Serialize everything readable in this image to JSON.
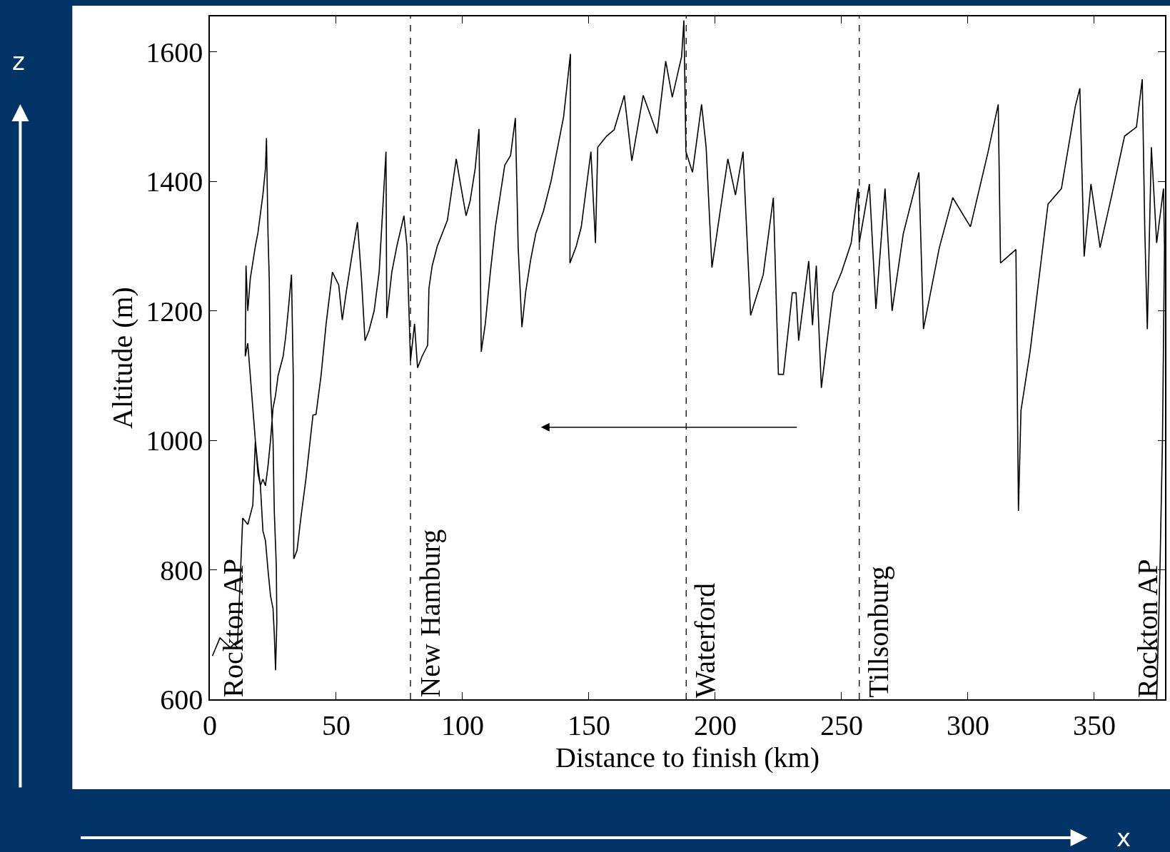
{
  "chart_data": {
    "type": "line",
    "xlabel": "Distance to finish (km)",
    "ylabel": "Altitude (m)",
    "xlim": [
      0,
      378
    ],
    "ylim": [
      600,
      1655
    ],
    "xticks": [
      0,
      50,
      100,
      150,
      200,
      250,
      300,
      350
    ],
    "yticks": [
      600,
      800,
      1000,
      1200,
      1400,
      1600
    ],
    "grid": false,
    "marker": "none",
    "line_style": "solid",
    "series": [
      {
        "color": "#000000",
        "x": [
          1,
          4,
          8,
          11,
          13,
          15,
          17,
          18,
          19,
          20,
          21,
          22,
          23,
          24,
          25,
          25.5,
          26,
          26.5,
          26.3,
          25.5,
          25,
          24,
          23.5,
          23,
          22.4,
          22,
          21,
          20,
          19,
          18,
          16,
          15,
          14.3,
          14,
          15,
          16,
          17,
          18,
          19,
          20,
          21,
          22,
          23,
          24,
          25,
          26,
          27,
          29,
          30,
          31,
          32.3,
          33,
          33.2,
          34.5,
          36,
          38,
          40.8,
          42,
          44,
          46,
          48.5,
          51,
          52.4,
          54,
          56,
          58.4,
          60,
          61.4,
          63,
          65,
          67,
          69.7,
          70,
          72,
          74,
          76.8,
          78,
          79.4,
          81,
          82.2,
          84,
          86.2,
          86.7,
          88,
          90,
          92,
          94,
          97.5,
          99,
          101.4,
          103,
          105,
          106.5,
          107.4,
          109,
          111,
          113,
          116.7,
          119,
          120.9,
          122,
          123.5,
          125,
          127,
          129,
          132,
          135,
          138,
          140,
          142.7,
          142.5,
          145,
          147,
          150.8,
          152.6,
          153.5,
          157,
          160,
          164,
          167,
          171.5,
          177,
          180.4,
          183,
          186.7,
          187.6,
          188.4,
          191,
          194.6,
          196.4,
          198.7,
          205,
          208,
          211,
          214,
          219,
          223,
          225,
          227,
          230.5,
          232,
          233,
          237,
          238.5,
          240,
          242,
          246.6,
          250,
          253.8,
          256.5,
          257,
          261,
          263.6,
          267.2,
          270,
          274.4,
          280.6,
          282.4,
          288.7,
          294,
          301,
          308,
          312,
          312.9,
          319,
          320,
          321,
          324.6,
          331.7,
          337,
          342.5,
          344.3,
          346,
          348.7,
          352.3,
          357,
          362,
          366.7,
          369,
          370,
          371,
          372.6,
          374.7,
          377.4,
          377.8,
          377,
          376,
          374.7
        ],
        "values": [
          667,
          695,
          680,
          690,
          880,
          870,
          900,
          1000,
          950,
          930,
          860,
          845,
          800,
          760,
          740,
          700,
          645,
          720,
          805,
          890,
          1000,
          1080,
          1250,
          1320,
          1467,
          1420,
          1380,
          1350,
          1320,
          1300,
          1250,
          1200,
          1270,
          1130,
          1150,
          1100,
          1050,
          1000,
          960,
          930,
          940,
          930,
          960,
          1000,
          1050,
          1070,
          1100,
          1130,
          1160,
          1200,
          1256,
          1100,
          817,
          830,
          880,
          940,
          1039,
          1040,
          1100,
          1180,
          1260,
          1240,
          1186,
          1230,
          1280,
          1337,
          1250,
          1154,
          1170,
          1200,
          1260,
          1446,
          1189,
          1260,
          1300,
          1347,
          1300,
          1123,
          1180,
          1112,
          1130,
          1147,
          1235,
          1270,
          1300,
          1320,
          1340,
          1435,
          1400,
          1347,
          1370,
          1420,
          1481,
          1137,
          1180,
          1260,
          1330,
          1425,
          1440,
          1498,
          1300,
          1175,
          1230,
          1280,
          1320,
          1354,
          1400,
          1460,
          1500,
          1597,
          1274,
          1300,
          1330,
          1446,
          1305,
          1453,
          1470,
          1480,
          1533,
          1432,
          1533,
          1474,
          1586,
          1530,
          1593,
          1649,
          1446,
          1414,
          1519,
          1453,
          1267,
          1435,
          1379,
          1446,
          1193,
          1256,
          1375,
          1102,
          1102,
          1228,
          1228,
          1154,
          1277,
          1178,
          1270,
          1081,
          1228,
          1260,
          1305,
          1389,
          1305,
          1396,
          1203,
          1389,
          1200,
          1319,
          1414,
          1172,
          1298,
          1375,
          1330,
          1446,
          1519,
          1274,
          1295,
          891,
          1046,
          1137,
          1365,
          1389,
          1516,
          1544,
          1284,
          1396,
          1298,
          1380,
          1470,
          1484,
          1558,
          1326,
          1172,
          1453,
          1305,
          1389,
          1300,
          1000,
          800,
          600
        ]
      }
    ],
    "ref_lines": [
      {
        "axis": "x",
        "value": 79.4,
        "label": "New Hamburg",
        "color": "#000000",
        "line_style": "dashed"
      },
      {
        "axis": "x",
        "value": 188.5,
        "label": "Waterford",
        "color": "#000000",
        "line_style": "dashed"
      },
      {
        "axis": "x",
        "value": 257,
        "label": "Tillsonburg",
        "color": "#000000",
        "line_style": "dashed"
      }
    ],
    "annotations": [
      "Rockton AP",
      "Rockton AP",
      "z",
      "x"
    ]
  }
}
